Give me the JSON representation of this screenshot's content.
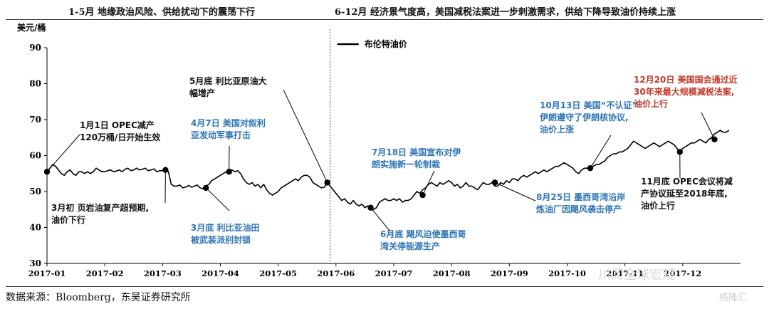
{
  "header": {
    "left": "1-5月  地缘政治风险、供给扰动下的震荡下行",
    "right": "6-12月  经济景气度高，美国减税法案进一步刺激需求，供给下降导致油价持续上涨"
  },
  "source": "数据来源：Bloomberg，东吴证券研究所",
  "watermark": "川阅全球宏观",
  "watermark2": "格隆汇",
  "colors": {
    "line": "#000000",
    "black_note": "#111111",
    "blue_note": "#2e75b6",
    "red_note": "#c0392b"
  },
  "chart_data": {
    "type": "line",
    "ylabel": "美元/桶",
    "ylim": [
      30,
      90
    ],
    "yticks": [
      30,
      40,
      50,
      60,
      70,
      80,
      90
    ],
    "xlim": [
      0,
      12
    ],
    "xticks": [
      "2017-01",
      "2017-02",
      "2017-03",
      "2017-04",
      "2017-05",
      "2017-06",
      "2017-07",
      "2017-08",
      "2017-09",
      "2017-10",
      "2017-11",
      "2017-12"
    ],
    "divider_x": 4.9,
    "series": [
      {
        "name": "布伦特油价",
        "points": [
          [
            0.0,
            55.5
          ],
          [
            0.05,
            56.5
          ],
          [
            0.1,
            57.5
          ],
          [
            0.15,
            57.0
          ],
          [
            0.2,
            56.0
          ],
          [
            0.25,
            55.0
          ],
          [
            0.3,
            54.5
          ],
          [
            0.35,
            55.5
          ],
          [
            0.4,
            56.0
          ],
          [
            0.45,
            55.0
          ],
          [
            0.5,
            54.5
          ],
          [
            0.55,
            55.5
          ],
          [
            0.6,
            55.5
          ],
          [
            0.65,
            55.0
          ],
          [
            0.7,
            55.5
          ],
          [
            0.75,
            55.0
          ],
          [
            0.8,
            55.5
          ],
          [
            0.85,
            56.5
          ],
          [
            0.9,
            56.0
          ],
          [
            0.95,
            55.5
          ],
          [
            1.0,
            55.5
          ],
          [
            1.05,
            55.8
          ],
          [
            1.1,
            56.0
          ],
          [
            1.15,
            55.5
          ],
          [
            1.2,
            55.7
          ],
          [
            1.25,
            56.0
          ],
          [
            1.3,
            55.5
          ],
          [
            1.35,
            56.2
          ],
          [
            1.4,
            56.5
          ],
          [
            1.45,
            55.8
          ],
          [
            1.5,
            56.0
          ],
          [
            1.55,
            56.5
          ],
          [
            1.6,
            56.0
          ],
          [
            1.65,
            56.2
          ],
          [
            1.7,
            56.5
          ],
          [
            1.75,
            55.8
          ],
          [
            1.8,
            56.0
          ],
          [
            1.85,
            56.3
          ],
          [
            1.9,
            55.5
          ],
          [
            1.95,
            55.8
          ],
          [
            2.0,
            55.8
          ],
          [
            2.05,
            56.0
          ],
          [
            2.1,
            55.5
          ],
          [
            2.15,
            52.0
          ],
          [
            2.2,
            51.5
          ],
          [
            2.25,
            51.5
          ],
          [
            2.3,
            51.8
          ],
          [
            2.35,
            51.0
          ],
          [
            2.4,
            51.2
          ],
          [
            2.45,
            51.7
          ],
          [
            2.5,
            51.2
          ],
          [
            2.55,
            51.5
          ],
          [
            2.6,
            51.8
          ],
          [
            2.65,
            51.0
          ],
          [
            2.7,
            50.8
          ],
          [
            2.75,
            51.5
          ],
          [
            2.8,
            52.0
          ],
          [
            2.85,
            53.0
          ],
          [
            2.9,
            53.5
          ],
          [
            2.95,
            54.0
          ],
          [
            3.0,
            54.5
          ],
          [
            3.05,
            55.0
          ],
          [
            3.1,
            55.5
          ],
          [
            3.15,
            55.8
          ],
          [
            3.2,
            56.0
          ],
          [
            3.25,
            55.5
          ],
          [
            3.3,
            55.8
          ],
          [
            3.35,
            55.0
          ],
          [
            3.4,
            53.5
          ],
          [
            3.45,
            52.5
          ],
          [
            3.5,
            52.0
          ],
          [
            3.55,
            52.5
          ],
          [
            3.6,
            51.5
          ],
          [
            3.65,
            52.0
          ],
          [
            3.7,
            51.0
          ],
          [
            3.75,
            52.0
          ],
          [
            3.8,
            50.5
          ],
          [
            3.85,
            49.5
          ],
          [
            3.9,
            49.0
          ],
          [
            3.95,
            49.5
          ],
          [
            4.0,
            50.0
          ],
          [
            4.05,
            51.0
          ],
          [
            4.1,
            51.5
          ],
          [
            4.15,
            52.0
          ],
          [
            4.2,
            52.5
          ],
          [
            4.25,
            53.0
          ],
          [
            4.3,
            53.5
          ],
          [
            4.35,
            53.0
          ],
          [
            4.4,
            54.0
          ],
          [
            4.45,
            54.5
          ],
          [
            4.5,
            54.5
          ],
          [
            4.55,
            54.0
          ],
          [
            4.6,
            52.5
          ],
          [
            4.65,
            52.0
          ],
          [
            4.7,
            51.5
          ],
          [
            4.75,
            51.0
          ],
          [
            4.8,
            51.2
          ],
          [
            4.85,
            52.5
          ],
          [
            4.9,
            51.5
          ],
          [
            4.95,
            50.5
          ],
          [
            5.0,
            49.5
          ],
          [
            5.05,
            48.5
          ],
          [
            5.1,
            47.5
          ],
          [
            5.15,
            48.0
          ],
          [
            5.2,
            47.0
          ],
          [
            5.25,
            46.5
          ],
          [
            5.3,
            47.5
          ],
          [
            5.35,
            46.5
          ],
          [
            5.4,
            46.0
          ],
          [
            5.45,
            46.5
          ],
          [
            5.5,
            45.5
          ],
          [
            5.55,
            46.0
          ],
          [
            5.6,
            45.5
          ],
          [
            5.65,
            45.0
          ],
          [
            5.7,
            45.5
          ],
          [
            5.75,
            47.0
          ],
          [
            5.8,
            47.5
          ],
          [
            5.85,
            48.0
          ],
          [
            5.9,
            47.5
          ],
          [
            5.95,
            47.5
          ],
          [
            6.0,
            48.0
          ],
          [
            6.05,
            47.5
          ],
          [
            6.1,
            48.0
          ],
          [
            6.15,
            47.0
          ],
          [
            6.2,
            47.5
          ],
          [
            6.25,
            47.5
          ],
          [
            6.3,
            48.0
          ],
          [
            6.35,
            49.0
          ],
          [
            6.4,
            50.0
          ],
          [
            6.45,
            49.5
          ],
          [
            6.5,
            50.5
          ],
          [
            6.55,
            51.0
          ],
          [
            6.6,
            52.0
          ],
          [
            6.65,
            52.5
          ],
          [
            6.7,
            52.0
          ],
          [
            6.75,
            51.5
          ],
          [
            6.8,
            52.5
          ],
          [
            6.85,
            52.0
          ],
          [
            6.9,
            52.5
          ],
          [
            6.95,
            53.0
          ],
          [
            7.0,
            52.5
          ],
          [
            7.05,
            51.5
          ],
          [
            7.1,
            52.0
          ],
          [
            7.15,
            51.0
          ],
          [
            7.2,
            51.5
          ],
          [
            7.25,
            52.5
          ],
          [
            7.3,
            51.5
          ],
          [
            7.35,
            51.5
          ],
          [
            7.4,
            51.0
          ],
          [
            7.45,
            50.5
          ],
          [
            7.5,
            51.5
          ],
          [
            7.55,
            52.5
          ],
          [
            7.6,
            52.0
          ],
          [
            7.65,
            52.0
          ],
          [
            7.7,
            52.5
          ],
          [
            7.75,
            51.5
          ],
          [
            7.8,
            51.5
          ],
          [
            7.85,
            52.5
          ],
          [
            7.9,
            52.0
          ],
          [
            7.95,
            53.0
          ],
          [
            8.0,
            52.5
          ],
          [
            8.05,
            53.5
          ],
          [
            8.1,
            53.5
          ],
          [
            8.15,
            53.0
          ],
          [
            8.2,
            54.0
          ],
          [
            8.25,
            54.5
          ],
          [
            8.3,
            54.0
          ],
          [
            8.35,
            54.5
          ],
          [
            8.4,
            55.0
          ],
          [
            8.45,
            55.5
          ],
          [
            8.5,
            55.0
          ],
          [
            8.55,
            55.5
          ],
          [
            8.6,
            56.0
          ],
          [
            8.65,
            55.5
          ],
          [
            8.7,
            56.0
          ],
          [
            8.75,
            56.5
          ],
          [
            8.8,
            57.0
          ],
          [
            8.85,
            57.0
          ],
          [
            8.9,
            57.5
          ],
          [
            8.95,
            58.0
          ],
          [
            9.0,
            57.5
          ],
          [
            9.05,
            57.0
          ],
          [
            9.1,
            56.5
          ],
          [
            9.15,
            55.5
          ],
          [
            9.2,
            55.0
          ],
          [
            9.25,
            56.0
          ],
          [
            9.3,
            56.5
          ],
          [
            9.35,
            56.5
          ],
          [
            9.4,
            56.0
          ],
          [
            9.45,
            57.0
          ],
          [
            9.5,
            57.5
          ],
          [
            9.55,
            57.5
          ],
          [
            9.6,
            58.0
          ],
          [
            9.65,
            58.5
          ],
          [
            9.7,
            59.5
          ],
          [
            9.75,
            60.0
          ],
          [
            9.8,
            60.5
          ],
          [
            9.85,
            60.5
          ],
          [
            9.9,
            61.0
          ],
          [
            9.95,
            61.0
          ],
          [
            10.0,
            61.5
          ],
          [
            10.05,
            62.0
          ],
          [
            10.1,
            63.0
          ],
          [
            10.15,
            64.0
          ],
          [
            10.2,
            63.5
          ],
          [
            10.25,
            63.0
          ],
          [
            10.3,
            62.5
          ],
          [
            10.35,
            62.0
          ],
          [
            10.4,
            62.5
          ],
          [
            10.45,
            63.0
          ],
          [
            10.5,
            63.5
          ],
          [
            10.55,
            63.0
          ],
          [
            10.6,
            62.5
          ],
          [
            10.65,
            63.0
          ],
          [
            10.7,
            63.5
          ],
          [
            10.75,
            64.0
          ],
          [
            10.8,
            63.5
          ],
          [
            10.85,
            63.0
          ],
          [
            10.9,
            62.0
          ],
          [
            10.95,
            61.0
          ],
          [
            11.0,
            62.0
          ],
          [
            11.05,
            62.5
          ],
          [
            11.1,
            63.0
          ],
          [
            11.15,
            63.5
          ],
          [
            11.2,
            63.5
          ],
          [
            11.25,
            64.0
          ],
          [
            11.3,
            64.5
          ],
          [
            11.35,
            64.0
          ],
          [
            11.4,
            63.5
          ],
          [
            11.45,
            64.5
          ],
          [
            11.5,
            65.0
          ],
          [
            11.55,
            66.0
          ],
          [
            11.6,
            66.5
          ],
          [
            11.65,
            67.0
          ],
          [
            11.7,
            66.5
          ],
          [
            11.75,
            66.5
          ],
          [
            11.8,
            67.0
          ]
        ]
      }
    ],
    "annotations": [
      {
        "id": "jan1",
        "lines": [
          "1月1日 OPEC减产",
          "120万桶/日开始生效"
        ],
        "color": "black",
        "point": [
          0.0,
          55.5
        ]
      },
      {
        "id": "mar-early",
        "lines": [
          "3月初 页岩油复产超预期,",
          "油价下行"
        ],
        "color": "black",
        "point": [
          2.05,
          56.0
        ]
      },
      {
        "id": "mar-end",
        "lines": [
          "3月底 利比亚油田",
          "被武装派别封锁"
        ],
        "color": "blue",
        "point": [
          2.75,
          51.0
        ]
      },
      {
        "id": "apr7",
        "lines": [
          "4月7日 美国对叙利",
          "亚发动军事打击"
        ],
        "color": "blue",
        "point": [
          3.15,
          55.5
        ]
      },
      {
        "id": "may-end",
        "lines": [
          "5月底 利比亚原油大",
          "幅增产"
        ],
        "color": "black",
        "point": [
          4.85,
          52.5
        ]
      },
      {
        "id": "jun",
        "lines": [
          "6月底 飓风迫使墨西哥",
          "湾关停能源生产"
        ],
        "color": "blue",
        "point": [
          5.6,
          45.5
        ]
      },
      {
        "id": "jul18",
        "lines": [
          "7月18日 美国宣布对伊",
          "朗实施新一轮制裁"
        ],
        "color": "blue",
        "point": [
          6.5,
          49.0
        ]
      },
      {
        "id": "aug25",
        "lines": [
          "8月25日 墨西哥湾沿岸",
          "炼油厂因飓风袭击停产"
        ],
        "color": "blue",
        "point": [
          7.75,
          52.5
        ]
      },
      {
        "id": "oct13",
        "lines": [
          "10月13日 美国“不认证”",
          "伊朗遵守了伊朗核协议,",
          "油价上涨"
        ],
        "color": "blue",
        "point": [
          9.4,
          56.5
        ]
      },
      {
        "id": "nov-end",
        "lines": [
          "11月底 OPEC会议将减",
          "产协议延至2018年底,",
          "油价上行"
        ],
        "color": "black",
        "point": [
          10.95,
          61.0
        ]
      },
      {
        "id": "dec20",
        "lines": [
          "12月20日 美国国会通过近",
          "30年来最大规模减税法案,",
          "油价上行"
        ],
        "color": "red",
        "point": [
          11.55,
          64.5
        ]
      }
    ]
  }
}
